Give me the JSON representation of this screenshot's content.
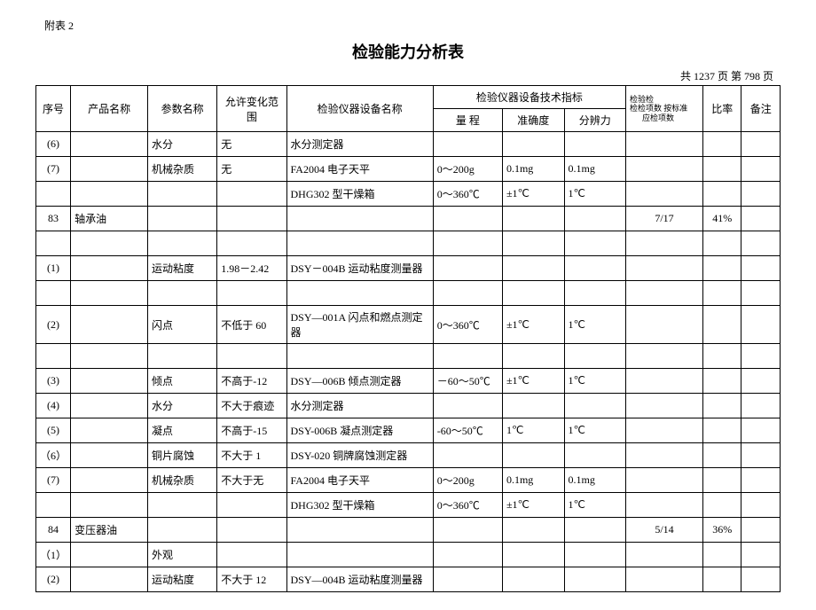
{
  "attach_label": "附表 2",
  "title": "检验能力分析表",
  "page_info": "共 1237 页  第 798 页",
  "headers": {
    "seq": "序号",
    "product": "产品名称",
    "param": "参数名称",
    "allow_range": "允许变化范围",
    "equipment": "检验仪器设备名称",
    "spec_group": "检验仪器设备技术指标",
    "spec_range": "量  程",
    "spec_acc": "准确度",
    "spec_res": "分辨力",
    "check_l1": "检验检",
    "check_l2": "检检项数  按标准",
    "check_l3": "应检项数",
    "ratio": "比率",
    "note": "备注"
  },
  "rows": [
    {
      "seq": "(6)",
      "product": "",
      "param": "水分",
      "range": "无",
      "equip": "水分测定器",
      "s1": "",
      "s2": "",
      "s3": "",
      "check": "",
      "ratio": "",
      "note": ""
    },
    {
      "seq": "(7)",
      "product": "",
      "param": "机械杂质",
      "range": "无",
      "equip": "FA2004 电子天平",
      "s1": "0～200g",
      "s2": "0.1mg",
      "s3": "0.1mg",
      "check": "",
      "ratio": "",
      "note": ""
    },
    {
      "seq": "",
      "product": "",
      "param": "",
      "range": "",
      "equip": "DHG302 型干燥箱",
      "s1": "0～360℃",
      "s2": "±1℃",
      "s3": "1℃",
      "check": "",
      "ratio": "",
      "note": ""
    },
    {
      "seq": "83",
      "product": "轴承油",
      "param": "",
      "range": "",
      "equip": "",
      "s1": "",
      "s2": "",
      "s3": "",
      "check": "7/17",
      "ratio": "41%",
      "note": ""
    },
    {
      "seq": "",
      "product": "",
      "param": "",
      "range": "",
      "equip": "",
      "s1": "",
      "s2": "",
      "s3": "",
      "check": "",
      "ratio": "",
      "note": ""
    },
    {
      "seq": "(1)",
      "product": "",
      "param": "运动粘度",
      "range": "1.98－2.42",
      "equip": "DSY－004B 运动粘度测量器",
      "s1": "",
      "s2": "",
      "s3": "",
      "check": "",
      "ratio": "",
      "note": ""
    },
    {
      "seq": "",
      "product": "",
      "param": "",
      "range": "",
      "equip": "",
      "s1": "",
      "s2": "",
      "s3": "",
      "check": "",
      "ratio": "",
      "note": ""
    },
    {
      "seq": "(2)",
      "product": "",
      "param": "闪点",
      "range": "不低于 60",
      "equip": "DSY—001A 闪点和燃点测定器",
      "s1": "0～360℃",
      "s2": "±1℃",
      "s3": "1℃",
      "check": "",
      "ratio": "",
      "note": ""
    },
    {
      "seq": "",
      "product": "",
      "param": "",
      "range": "",
      "equip": "",
      "s1": "",
      "s2": "",
      "s3": "",
      "check": "",
      "ratio": "",
      "note": ""
    },
    {
      "seq": "(3)",
      "product": "",
      "param": "倾点",
      "range": "不高于-12",
      "equip": "DSY—006B 倾点测定器",
      "s1": "－60～50℃",
      "s2": "±1℃",
      "s3": "1℃",
      "check": "",
      "ratio": "",
      "note": ""
    },
    {
      "seq": "(4)",
      "product": "",
      "param": "水分",
      "range": "不大于痕迹",
      "equip": "水分测定器",
      "s1": "",
      "s2": "",
      "s3": "",
      "check": "",
      "ratio": "",
      "note": ""
    },
    {
      "seq": "(5)",
      "product": "",
      "param": "凝点",
      "range": "不高于-15",
      "equip": "DSY-006B 凝点测定器",
      "s1": "-60～50℃",
      "s2": "1℃",
      "s3": "1℃",
      "check": "",
      "ratio": "",
      "note": ""
    },
    {
      "seq": "（6）",
      "product": "",
      "param": "铜片腐蚀",
      "range": "不大于 1",
      "equip": "DSY-020 铜牌腐蚀测定器",
      "s1": "",
      "s2": "",
      "s3": "",
      "check": "",
      "ratio": "",
      "note": ""
    },
    {
      "seq": "(7)",
      "product": "",
      "param": "机械杂质",
      "range": "不大于无",
      "equip": "FA2004 电子天平",
      "s1": "0～200g",
      "s2": "0.1mg",
      "s3": "0.1mg",
      "check": "",
      "ratio": "",
      "note": ""
    },
    {
      "seq": "",
      "product": "",
      "param": "",
      "range": "",
      "equip": "DHG302 型干燥箱",
      "s1": "0～360℃",
      "s2": "±1℃",
      "s3": "1℃",
      "check": "",
      "ratio": "",
      "note": ""
    },
    {
      "seq": "84",
      "product": "变压器油",
      "param": "",
      "range": "",
      "equip": "",
      "s1": "",
      "s2": "",
      "s3": "",
      "check": "5/14",
      "ratio": "36%",
      "note": ""
    },
    {
      "seq": "（1）",
      "product": "",
      "param": "外观",
      "range": "",
      "equip": "",
      "s1": "",
      "s2": "",
      "s3": "",
      "check": "",
      "ratio": "",
      "note": ""
    },
    {
      "seq": "(2)",
      "product": "",
      "param": "运动粘度",
      "range": "不大于 12",
      "equip": "DSY—004B 运动粘度测量器",
      "s1": "",
      "s2": "",
      "s3": "",
      "check": "",
      "ratio": "",
      "note": ""
    }
  ]
}
